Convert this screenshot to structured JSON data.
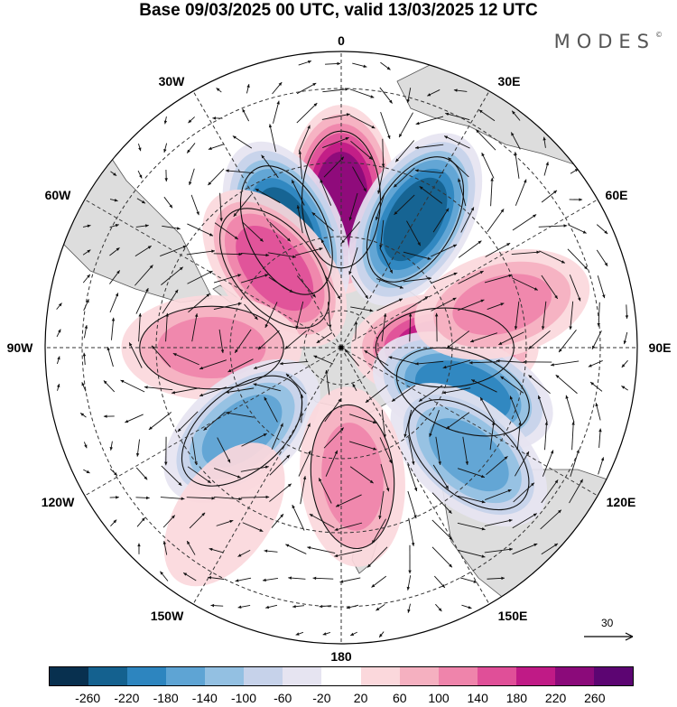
{
  "title": "Base 09/03/2025 00 UTC, valid 13/03/2025 12 UTC",
  "brand": "MODES",
  "brand_mark": "©",
  "longitude_labels": {
    "lon_0": "0",
    "lon_30e": "30E",
    "lon_60e": "60E",
    "lon_90e": "90E",
    "lon_120e": "120E",
    "lon_150e": "150E",
    "lon_180": "180",
    "lon_150w": "150W",
    "lon_120w": "120W",
    "lon_90w": "90W",
    "lon_60w": "60W",
    "lon_30w": "30W"
  },
  "reference_vector": {
    "label": "30"
  },
  "colorbar": {
    "colors": [
      "#08304f",
      "#14618f",
      "#2d85bf",
      "#5ea4d4",
      "#93c0e2",
      "#c6d2ea",
      "#e6e4f1",
      "#ffffff",
      "#fbd8dc",
      "#f5b0c0",
      "#ef84ab",
      "#e04f98",
      "#c01a86",
      "#8b0a7a",
      "#5c0572"
    ],
    "ticks": [
      "-260",
      "-220",
      "-180",
      "-140",
      "-100",
      "-60",
      "-20",
      "20",
      "60",
      "100",
      "140",
      "180",
      "220",
      "260"
    ]
  },
  "anomaly_centers": [
    {
      "lon": 0,
      "lat": -50,
      "value": 240
    },
    {
      "lon": 30,
      "lat": -50,
      "value": -230
    },
    {
      "lon": -25,
      "lat": -55,
      "value": -230
    },
    {
      "lon": -40,
      "lat": -62,
      "value": 150
    },
    {
      "lon": 90,
      "lat": -62,
      "value": 200
    },
    {
      "lon": 110,
      "lat": -55,
      "value": -200
    },
    {
      "lon": 130,
      "lat": -45,
      "value": -140
    },
    {
      "lon": 75,
      "lat": -45,
      "value": 100
    },
    {
      "lon": -90,
      "lat": -55,
      "value": 110
    },
    {
      "lon": -130,
      "lat": -55,
      "value": -140
    },
    {
      "lon": 175,
      "lat": -55,
      "value": 110
    },
    {
      "lon": -145,
      "lat": -35,
      "value": 40
    }
  ]
}
